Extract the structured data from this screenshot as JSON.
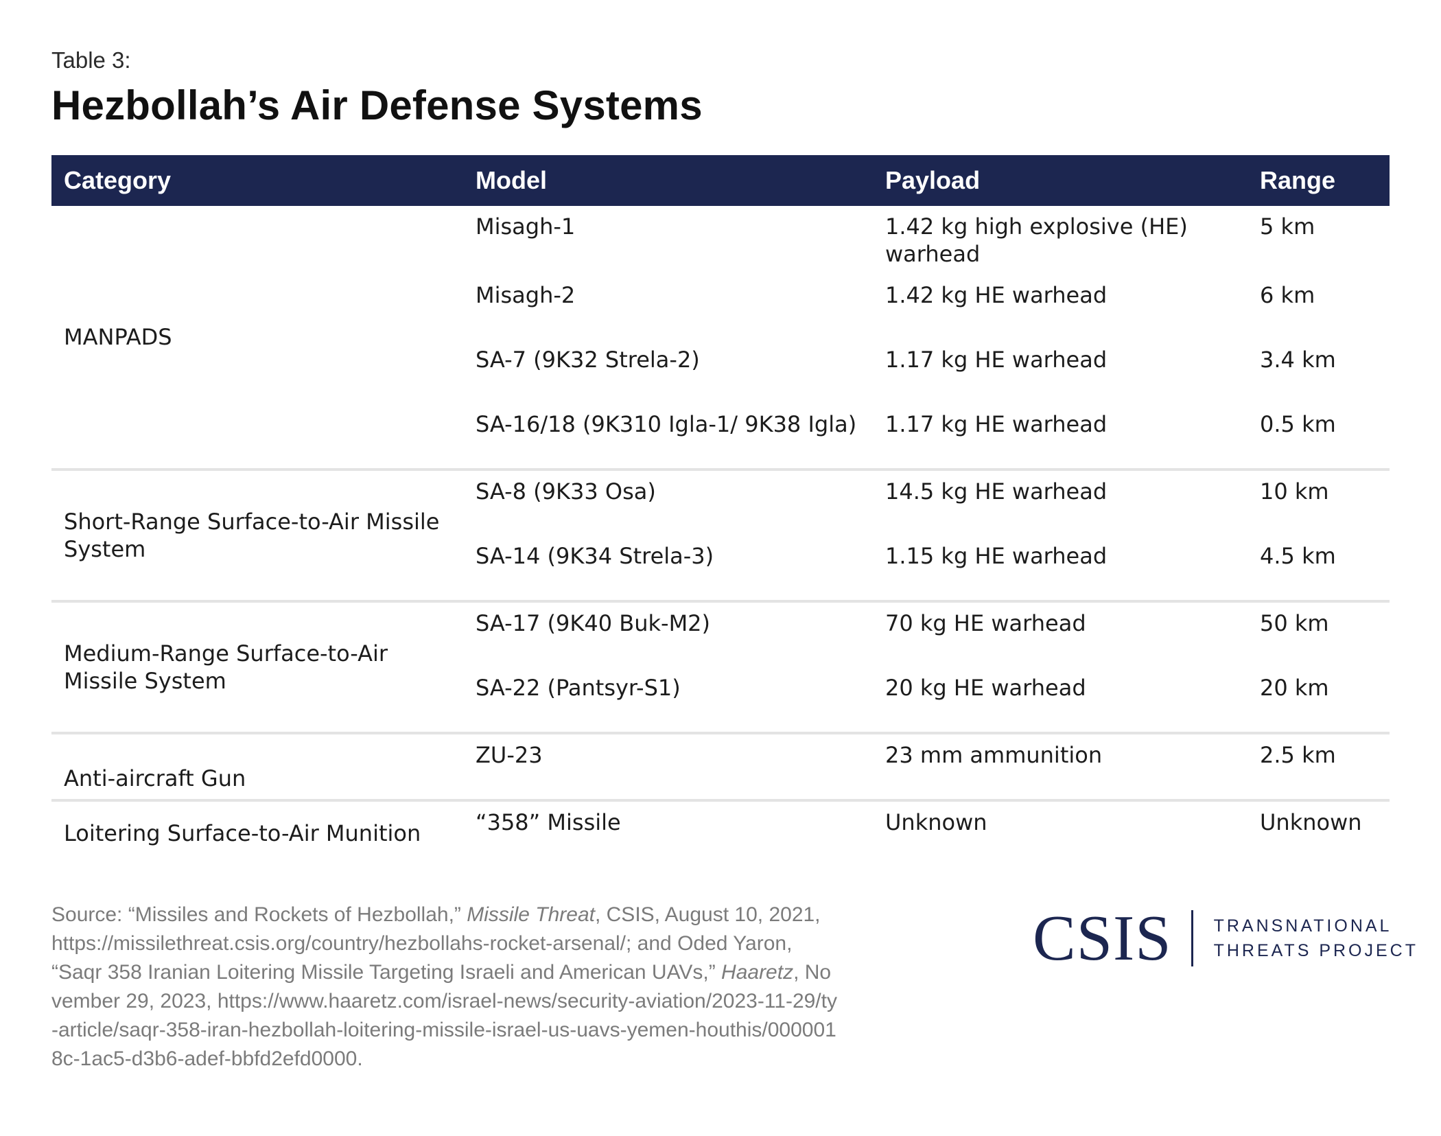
{
  "header": {
    "eyebrow": "Table 3:",
    "title": "Hezbollah’s Air Defense Systems"
  },
  "table": {
    "columns": [
      "Category",
      "Model",
      "Payload",
      "Range"
    ],
    "groups": [
      {
        "category": "MANPADS",
        "rows": [
          {
            "model": "Misagh-1",
            "payload": "1.42 kg high explosive (HE) warhead",
            "range": "5 km"
          },
          {
            "model": "Misagh-2",
            "payload": "1.42 kg HE warhead",
            "range": "6 km"
          },
          {
            "model": "SA-7 (9K32 Strela-2)",
            "payload": "1.17 kg HE warhead",
            "range": "3.4 km"
          },
          {
            "model": "SA-16/18 (9K310 Igla-1/ 9K38 Igla)",
            "payload": "1.17 kg HE warhead",
            "range": "0.5 km"
          }
        ]
      },
      {
        "category": "Short-Range Surface-to-Air Missile System",
        "rows": [
          {
            "model": "SA-8 (9K33 Osa)",
            "payload": "14.5 kg HE warhead",
            "range": "10 km"
          },
          {
            "model": "SA-14 (9K34 Strela-3)",
            "payload": "1.15 kg HE warhead",
            "range": "4.5 km"
          }
        ]
      },
      {
        "category": "Medium-Range Surface-to-Air Missile System",
        "rows": [
          {
            "model": "SA-17 (9K40 Buk-M2)",
            "payload": "70 kg HE warhead",
            "range": "50 km"
          },
          {
            "model": "SA-22 (Pantsyr-S1)",
            "payload": "20 kg HE warhead",
            "range": "20 km"
          }
        ]
      },
      {
        "category": "Anti-aircraft Gun",
        "rows": [
          {
            "model": "ZU-23",
            "payload": "23 mm ammunition",
            "range": "2.5 km"
          }
        ]
      },
      {
        "category": "Loitering Surface-to-Air Munition",
        "rows": [
          {
            "model": "“358” Missile",
            "payload": "Unknown",
            "range": "Unknown"
          }
        ]
      }
    ]
  },
  "footer": {
    "source_prefix": "Source: “Missiles and Rockets of Hezbollah,” ",
    "source_italic_1": "Missile Threat",
    "source_mid": ", CSIS, August 10, 2021, https://missilethreat.csis.org/country/hezbollahs-rocket-arsenal/; and Oded Yaron, “Saqr 358 Iranian Loitering Missile Targeting Israeli and American UAVs,” ",
    "source_italic_2": "Haaretz",
    "source_suffix": ", November 29, 2023, https://www.haaretz.com/israel-news/security-aviation/2023-11-29/ty-article/saqr-358-iran-hezbollah-loitering-missile-israel-us-uavs-yemen-houthis/0000018c-1ac5-d3b6-adef-bbfd2efd0000.",
    "logo_mark": "CSIS",
    "logo_line1": "TRANSNATIONAL",
    "logo_line2": "THREATS PROJECT"
  },
  "colors": {
    "header_bg": "#1c2650",
    "divider": "#e3e3e3",
    "source_text": "#7b7b7b"
  }
}
